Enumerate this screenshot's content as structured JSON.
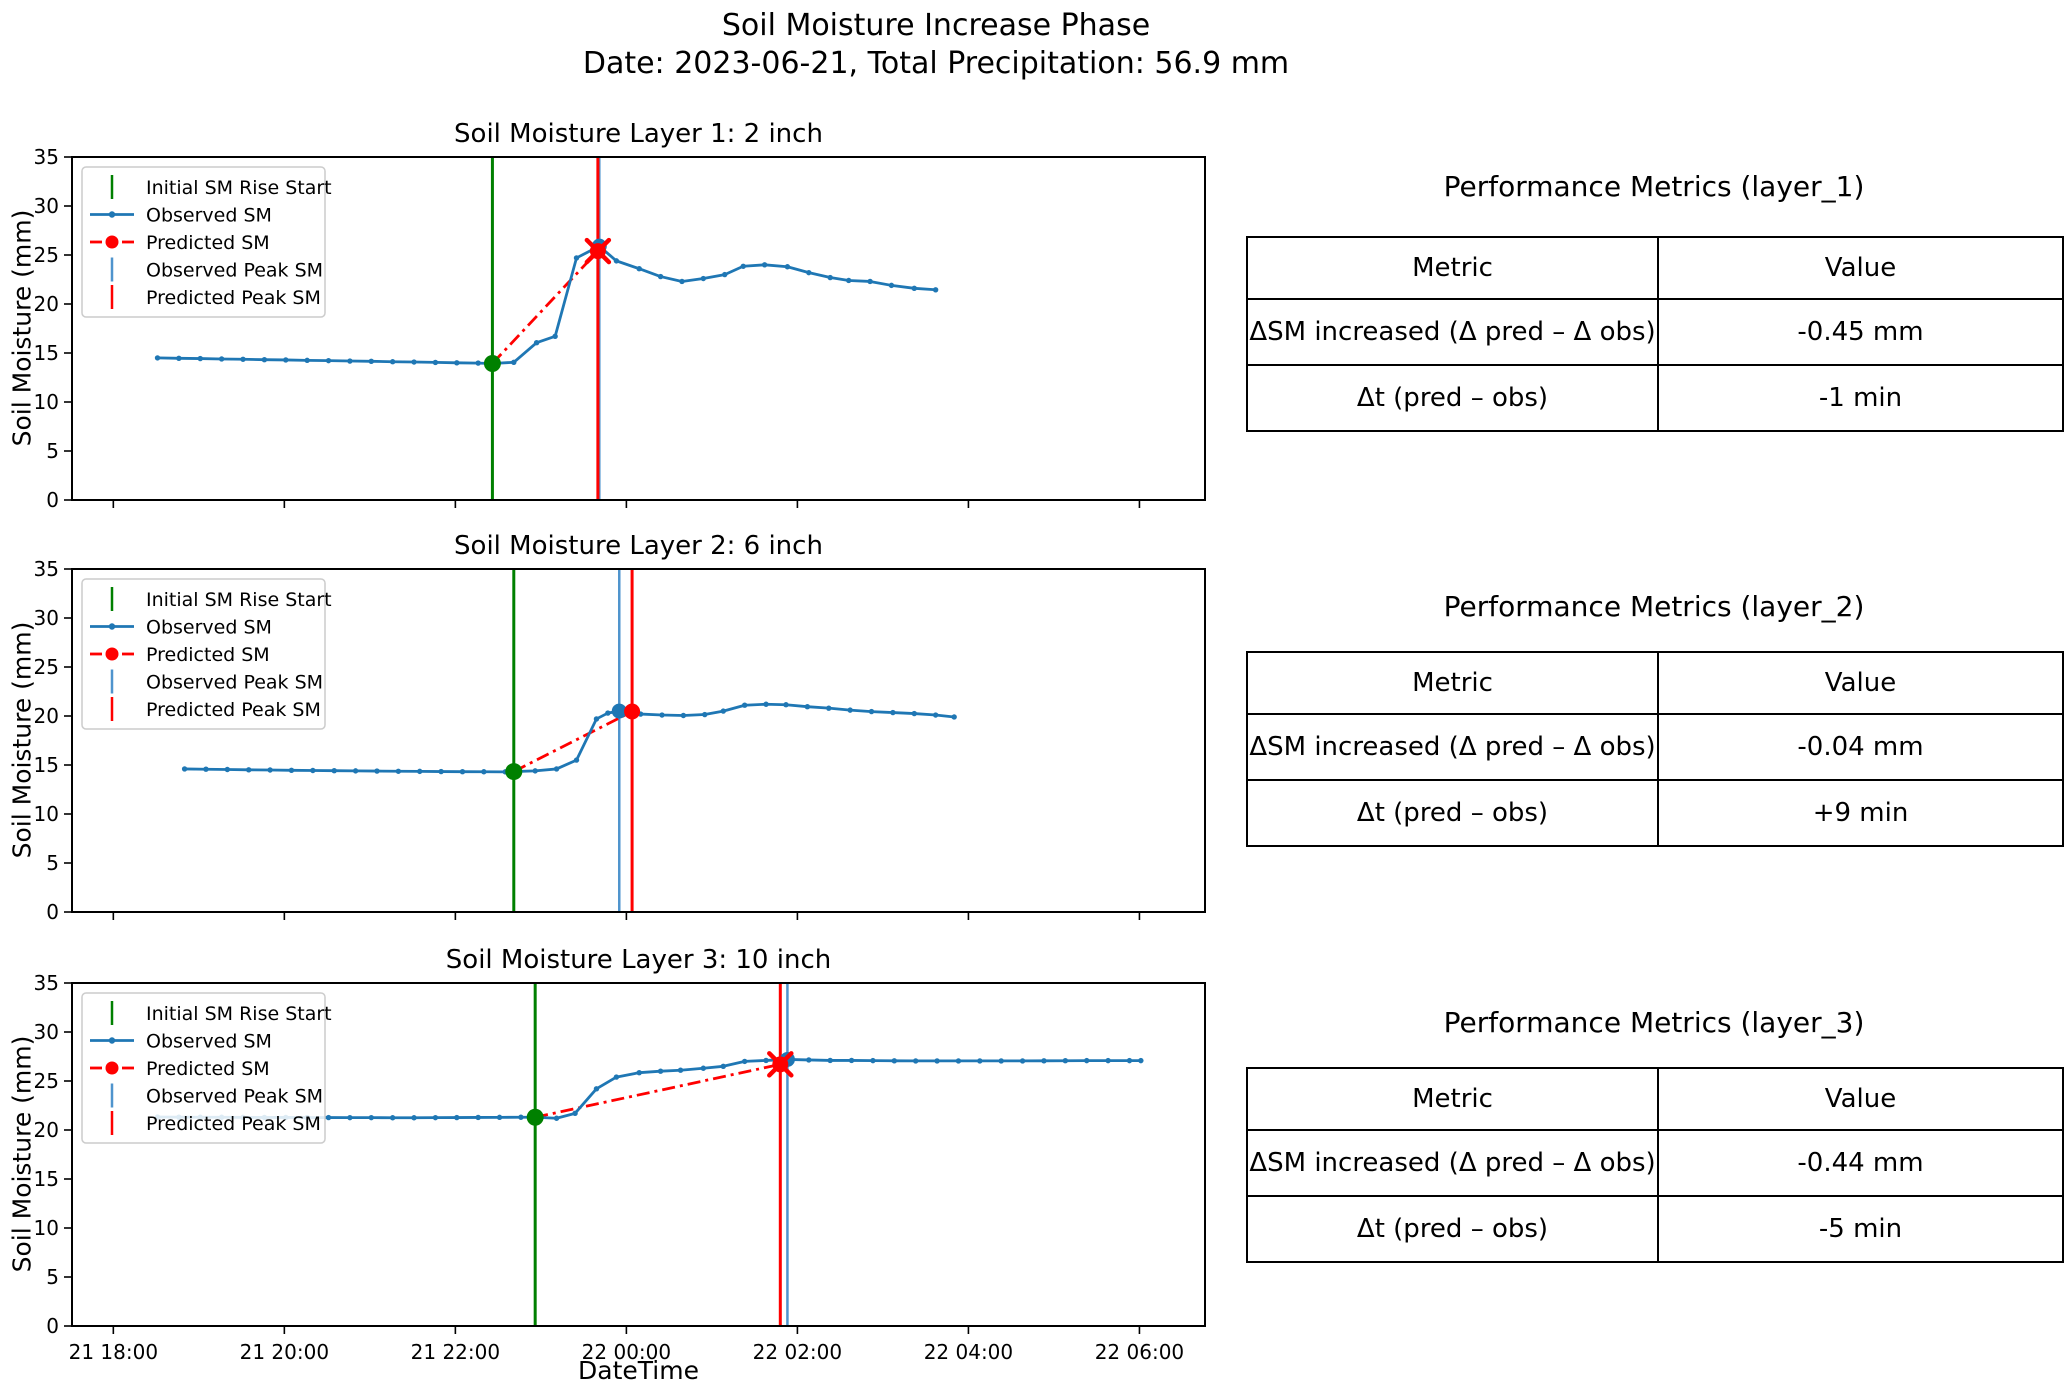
{
  "suptitle": {
    "line1": "Soil Moisture Increase Phase",
    "line2": "Date: 2023-06-21, Total Precipitation: 56.9 mm"
  },
  "axes": {
    "ylabel": "Soil Moisture (mm)",
    "xlabel": "DateTime",
    "ylim": [
      0,
      35
    ],
    "yticks": [
      0,
      5,
      10,
      15,
      20,
      25,
      30,
      35
    ],
    "xlim_minutes": [
      -29,
      766
    ],
    "xtick_minutes": [
      0,
      120,
      240,
      360,
      480,
      600,
      720
    ],
    "xtick_labels": [
      "21 18:00",
      "21 20:00",
      "21 22:00",
      "22 00:00",
      "22 02:00",
      "22 04:00",
      "22 06:00"
    ],
    "x_unit": "minutes after 2023-06-21 18:00"
  },
  "legend_labels": [
    "Initial SM Rise Start",
    "Observed SM",
    "Predicted SM",
    "Observed Peak SM",
    "Predicted Peak SM"
  ],
  "colors": {
    "observed": "#1f77b4",
    "predicted": "#ff0000",
    "rise_start": "#008000",
    "observed_peak_line": "#4f94cd",
    "predicted_peak_line": "#ff0000",
    "axis": "#000000",
    "legend_border": "#cccccc"
  },
  "chart_data": [
    {
      "type": "line",
      "title": "Soil Moisture Layer 1: 2 inch",
      "ylabel": "Soil Moisture (mm)",
      "ylim": [
        0,
        35
      ],
      "series": {
        "observed_sm": [
          [
            31,
            14.5
          ],
          [
            46,
            14.46
          ],
          [
            61,
            14.43
          ],
          [
            76,
            14.39
          ],
          [
            91,
            14.36
          ],
          [
            106,
            14.32
          ],
          [
            121,
            14.29
          ],
          [
            136,
            14.25
          ],
          [
            151,
            14.22
          ],
          [
            166,
            14.18
          ],
          [
            181,
            14.15
          ],
          [
            196,
            14.11
          ],
          [
            211,
            14.08
          ],
          [
            226,
            14.04
          ],
          [
            241,
            14.0
          ],
          [
            256,
            13.97
          ],
          [
            266,
            13.93
          ],
          [
            281,
            14.05
          ],
          [
            297,
            16.05
          ],
          [
            310,
            16.7
          ],
          [
            325,
            24.7
          ],
          [
            341,
            25.9
          ],
          [
            353,
            24.4
          ],
          [
            369,
            23.6
          ],
          [
            384,
            22.8
          ],
          [
            399,
            22.3
          ],
          [
            414,
            22.6
          ],
          [
            429,
            23.0
          ],
          [
            442,
            23.85
          ],
          [
            457,
            24.0
          ],
          [
            473,
            23.8
          ],
          [
            488,
            23.2
          ],
          [
            503,
            22.7
          ],
          [
            516,
            22.4
          ],
          [
            531,
            22.3
          ],
          [
            546,
            21.9
          ],
          [
            562,
            21.6
          ],
          [
            577,
            21.45
          ]
        ],
        "predicted_sm": [
          [
            266,
            13.93
          ],
          [
            340,
            25.4
          ]
        ]
      },
      "events": {
        "rise_start": {
          "minute": 266,
          "value": 13.93
        },
        "observed_peak": {
          "minute": 341,
          "value": 25.9
        },
        "predicted_peak": {
          "minute": 340,
          "value": 25.4
        }
      },
      "predicted_x_marker": true
    },
    {
      "type": "line",
      "title": "Soil Moisture Layer 2: 6 inch",
      "ylabel": "Soil Moisture (mm)",
      "ylim": [
        0,
        35
      ],
      "series": {
        "observed_sm": [
          [
            50,
            14.6
          ],
          [
            65,
            14.57
          ],
          [
            80,
            14.54
          ],
          [
            95,
            14.51
          ],
          [
            110,
            14.49
          ],
          [
            125,
            14.46
          ],
          [
            140,
            14.44
          ],
          [
            155,
            14.42
          ],
          [
            170,
            14.4
          ],
          [
            185,
            14.38
          ],
          [
            200,
            14.36
          ],
          [
            215,
            14.35
          ],
          [
            230,
            14.33
          ],
          [
            245,
            14.32
          ],
          [
            260,
            14.31
          ],
          [
            275,
            14.3
          ],
          [
            281,
            14.33
          ],
          [
            296,
            14.4
          ],
          [
            311,
            14.6
          ],
          [
            325,
            15.5
          ],
          [
            339,
            19.7
          ],
          [
            347,
            20.3
          ],
          [
            355,
            20.5
          ],
          [
            370,
            20.2
          ],
          [
            385,
            20.1
          ],
          [
            400,
            20.05
          ],
          [
            415,
            20.15
          ],
          [
            428,
            20.5
          ],
          [
            443,
            21.1
          ],
          [
            458,
            21.2
          ],
          [
            472,
            21.15
          ],
          [
            487,
            20.95
          ],
          [
            502,
            20.8
          ],
          [
            517,
            20.6
          ],
          [
            532,
            20.45
          ],
          [
            547,
            20.35
          ],
          [
            562,
            20.25
          ],
          [
            577,
            20.1
          ],
          [
            590,
            19.9
          ]
        ],
        "predicted_sm": [
          [
            281,
            14.33
          ],
          [
            364,
            20.46
          ]
        ]
      },
      "events": {
        "rise_start": {
          "minute": 281,
          "value": 14.33
        },
        "observed_peak": {
          "minute": 355,
          "value": 20.5
        },
        "predicted_peak": {
          "minute": 364,
          "value": 20.46
        }
      },
      "predicted_x_marker": false
    },
    {
      "type": "line",
      "title": "Soil Moisture Layer 3: 10 inch",
      "ylabel": "Soil Moisture (mm)",
      "ylim": [
        0,
        35
      ],
      "series": {
        "observed_sm": [
          [
            31,
            21.32
          ],
          [
            46,
            21.31
          ],
          [
            61,
            21.3
          ],
          [
            76,
            21.3
          ],
          [
            91,
            21.29
          ],
          [
            106,
            21.28
          ],
          [
            121,
            21.28
          ],
          [
            136,
            21.27
          ],
          [
            151,
            21.27
          ],
          [
            166,
            21.26
          ],
          [
            181,
            21.26
          ],
          [
            196,
            21.25
          ],
          [
            211,
            21.25
          ],
          [
            226,
            21.26
          ],
          [
            241,
            21.27
          ],
          [
            256,
            21.28
          ],
          [
            271,
            21.29
          ],
          [
            286,
            21.3
          ],
          [
            296,
            21.3
          ],
          [
            311,
            21.2
          ],
          [
            324,
            21.7
          ],
          [
            339,
            24.2
          ],
          [
            353,
            25.4
          ],
          [
            369,
            25.85
          ],
          [
            384,
            26.0
          ],
          [
            398,
            26.1
          ],
          [
            414,
            26.3
          ],
          [
            428,
            26.5
          ],
          [
            443,
            27.0
          ],
          [
            458,
            27.1
          ],
          [
            473,
            27.2
          ],
          [
            488,
            27.15
          ],
          [
            503,
            27.1
          ],
          [
            518,
            27.1
          ],
          [
            533,
            27.08
          ],
          [
            548,
            27.06
          ],
          [
            563,
            27.05
          ],
          [
            578,
            27.05
          ],
          [
            593,
            27.05
          ],
          [
            608,
            27.05
          ],
          [
            623,
            27.05
          ],
          [
            638,
            27.05
          ],
          [
            653,
            27.06
          ],
          [
            668,
            27.07
          ],
          [
            683,
            27.08
          ],
          [
            698,
            27.08
          ],
          [
            713,
            27.08
          ],
          [
            721,
            27.08
          ]
        ],
        "predicted_sm": [
          [
            296,
            21.3
          ],
          [
            468,
            26.7
          ]
        ]
      },
      "events": {
        "rise_start": {
          "minute": 296,
          "value": 21.3
        },
        "observed_peak": {
          "minute": 473,
          "value": 27.2
        },
        "predicted_peak": {
          "minute": 468,
          "value": 26.7
        }
      },
      "predicted_x_marker": true
    }
  ],
  "tables": [
    {
      "title": "Performance Metrics (layer_1)",
      "headers": [
        "Metric",
        "Value"
      ],
      "rows": [
        [
          "ΔSM increased (Δ pred – Δ obs)",
          "-0.45 mm"
        ],
        [
          "Δt  (pred – obs)",
          "-1 min"
        ]
      ]
    },
    {
      "title": "Performance Metrics (layer_2)",
      "headers": [
        "Metric",
        "Value"
      ],
      "rows": [
        [
          "ΔSM increased (Δ pred – Δ obs)",
          "-0.04 mm"
        ],
        [
          "Δt  (pred – obs)",
          "+9 min"
        ]
      ]
    },
    {
      "title": "Performance Metrics (layer_3)",
      "headers": [
        "Metric",
        "Value"
      ],
      "rows": [
        [
          "ΔSM increased (Δ pred – Δ obs)",
          "-0.44 mm"
        ],
        [
          "Δt  (pred – obs)",
          "-5 min"
        ]
      ]
    }
  ]
}
